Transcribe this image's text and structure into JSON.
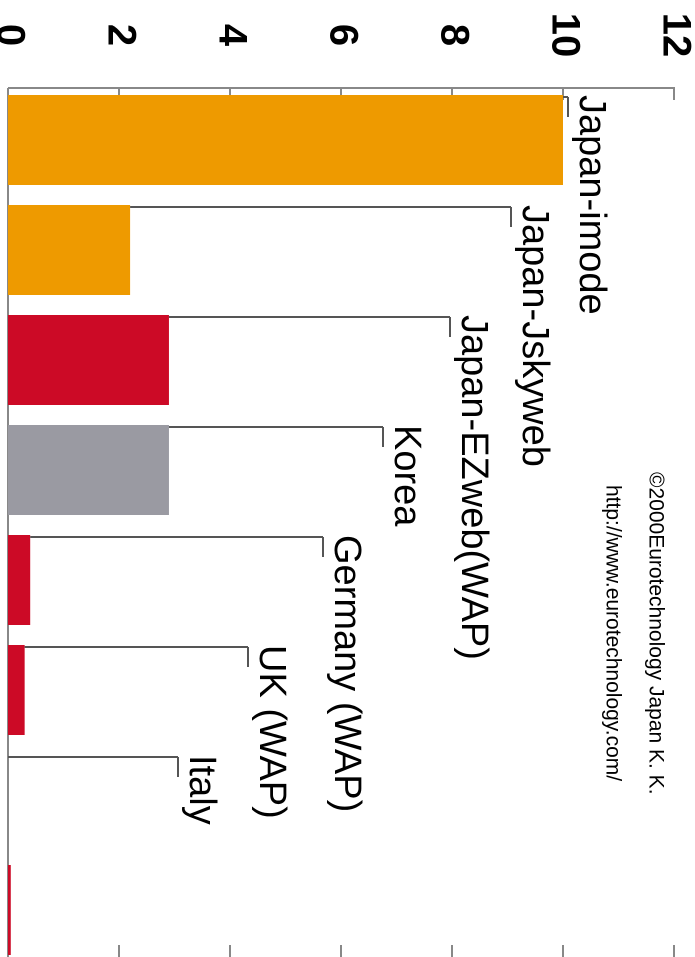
{
  "chart_data": {
    "type": "bar",
    "credits": [
      "©2000Eurotechnology Japan K. K.",
      "http://www.eurotechnology.com/"
    ],
    "categories": [
      "Japan-imode",
      "Japan-Jskyweb",
      "Japan-EZweb(WAP)",
      "Korea",
      "Germany (WAP)",
      "UK (WAP)",
      "Italy",
      null
    ],
    "values": [
      10,
      2.2,
      2.9,
      2.9,
      0.4,
      0.3,
      0,
      0.05
    ],
    "colors": [
      "#ee9a00",
      "#ee9a00",
      "#cc0a26",
      "#9a9aa2",
      "#cc0a26",
      "#cc0a26",
      "#cc0a26",
      "#cc0a26"
    ],
    "ylim": [
      0,
      12
    ],
    "yticks": [
      0,
      2,
      4,
      6,
      8,
      10,
      12
    ]
  }
}
